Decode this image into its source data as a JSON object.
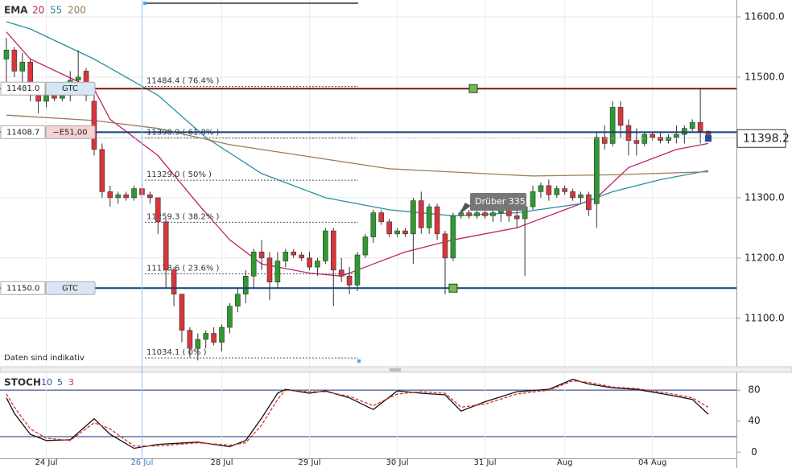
{
  "chart_data": [
    {
      "type": "candlestick",
      "title": "EMA",
      "categories": [
        null,
        null,
        null,
        null,
        null,
        "24 Jul",
        null,
        null,
        null,
        null,
        null,
        null,
        null,
        null,
        null,
        null,
        null,
        "26 Jul",
        null,
        null,
        null,
        null,
        null,
        null,
        null,
        null,
        null,
        "28 Jul",
        null,
        null,
        null,
        null,
        null,
        null,
        null,
        null,
        null,
        null,
        "29 Jul",
        null,
        null,
        null,
        null,
        null,
        null,
        null,
        null,
        null,
        null,
        "30 Jul",
        null,
        null,
        null,
        null,
        null,
        null,
        null,
        null,
        null,
        null,
        "31 Jul",
        null,
        null,
        null,
        null,
        null,
        null,
        null,
        null,
        null,
        "Aug",
        null,
        null,
        null,
        null,
        null,
        null,
        null,
        null,
        null,
        null,
        "04 Aug",
        null,
        null,
        null,
        null,
        null,
        null,
        null
      ],
      "crosshair": 17,
      "open": [
        11530,
        11545,
        11510,
        11525,
        11470,
        11460,
        11480,
        11465,
        11470,
        11495,
        11510,
        11460,
        11380,
        11310,
        11300,
        11305,
        11300,
        11315,
        11305,
        11300,
        11260,
        11180,
        11140,
        11080,
        11050,
        11065,
        11075,
        11060,
        11085,
        11120,
        11140,
        11170,
        11210,
        11200,
        11160,
        11195,
        11210,
        11205,
        11200,
        11185,
        11195,
        11245,
        11180,
        11170,
        11155,
        11205,
        11235,
        11275,
        11260,
        11240,
        11245,
        11240,
        11295,
        11250,
        11285,
        11240,
        11200,
        11270,
        11275,
        11270,
        11275,
        11270,
        11275,
        11280,
        11270,
        11265,
        11285,
        11310,
        11320,
        11305,
        11315,
        11310,
        11300,
        11305,
        11290,
        11400,
        11390,
        11450,
        11420,
        11395,
        11390,
        11405,
        11400,
        11395,
        11400,
        11405,
        11415,
        11425,
        11410
      ],
      "high": [
        11565,
        11550,
        11540,
        11530,
        11490,
        11490,
        11490,
        11480,
        11510,
        11545,
        11515,
        11470,
        11390,
        11320,
        11310,
        11310,
        11320,
        11325,
        11310,
        11300,
        11265,
        11185,
        11140,
        11085,
        11075,
        11080,
        11085,
        11090,
        11125,
        11150,
        11180,
        11215,
        11230,
        11210,
        11210,
        11215,
        11215,
        11210,
        11210,
        11200,
        11250,
        11250,
        11200,
        11185,
        11210,
        11240,
        11280,
        11280,
        11265,
        11250,
        11250,
        11300,
        11310,
        11290,
        11290,
        11245,
        11275,
        11280,
        11280,
        11280,
        11285,
        11280,
        11285,
        11290,
        11280,
        11290,
        11320,
        11325,
        11330,
        11320,
        11320,
        11315,
        11310,
        11310,
        11410,
        11420,
        11460,
        11460,
        11430,
        11415,
        11410,
        11410,
        11410,
        11405,
        11420,
        11420,
        11430,
        11480,
        11412
      ],
      "low": [
        11490,
        11500,
        11470,
        11460,
        11440,
        11450,
        11460,
        11460,
        11460,
        11480,
        11460,
        11370,
        11300,
        11285,
        11290,
        11295,
        11295,
        11300,
        11290,
        11240,
        11150,
        11120,
        11060,
        11035,
        11030,
        11050,
        11055,
        11045,
        11075,
        11110,
        11125,
        11150,
        11180,
        11130,
        11150,
        11185,
        11200,
        11195,
        11180,
        11170,
        11190,
        11120,
        11160,
        11140,
        11145,
        11200,
        11225,
        11255,
        11235,
        11235,
        11235,
        11190,
        11240,
        11240,
        11230,
        11140,
        11195,
        11265,
        11265,
        11265,
        11265,
        11260,
        11260,
        11260,
        11250,
        11170,
        11280,
        11300,
        11295,
        11300,
        11305,
        11295,
        11290,
        11270,
        11250,
        11380,
        11385,
        11400,
        11370,
        11370,
        11385,
        11395,
        11390,
        11390,
        11390,
        11390,
        11410,
        11390,
        11395
      ],
      "close": [
        11545,
        11510,
        11525,
        11470,
        11460,
        11480,
        11465,
        11470,
        11495,
        11500,
        11470,
        11380,
        11310,
        11300,
        11305,
        11300,
        11315,
        11305,
        11300,
        11260,
        11180,
        11140,
        11080,
        11050,
        11065,
        11075,
        11060,
        11085,
        11120,
        11140,
        11170,
        11210,
        11200,
        11160,
        11195,
        11210,
        11205,
        11200,
        11185,
        11195,
        11245,
        11180,
        11170,
        11155,
        11205,
        11235,
        11275,
        11260,
        11240,
        11245,
        11240,
        11295,
        11250,
        11285,
        11240,
        11200,
        11270,
        11275,
        11270,
        11275,
        11270,
        11275,
        11280,
        11270,
        11265,
        11285,
        11310,
        11320,
        11305,
        11315,
        11310,
        11300,
        11305,
        11280,
        11400,
        11390,
        11450,
        11420,
        11395,
        11390,
        11405,
        11400,
        11395,
        11400,
        11405,
        11415,
        11425,
        11410,
        11398.2
      ],
      "up_color": "#2f9a2f",
      "down_color": "#d8353d",
      "ylim": [
        11021,
        11628
      ],
      "yticks": [
        {
          "value": 11100,
          "label": "11100.0"
        },
        {
          "value": 11200,
          "label": "11200.0"
        },
        {
          "value": 11300,
          "label": "11300.0"
        },
        {
          "value": 11400,
          "label": "11400.0"
        },
        {
          "value": 11500,
          "label": "11500.0"
        },
        {
          "value": 11600,
          "label": "11600.0"
        }
      ],
      "grid": true,
      "overlays": [
        {
          "name": "20",
          "color": "#c0226a",
          "x": [
            0,
            3,
            11,
            13,
            19,
            24,
            28,
            32,
            38,
            42,
            46,
            50,
            56,
            64,
            70,
            74,
            78,
            84,
            88
          ],
          "values": [
            11575,
            11530,
            11480,
            11430,
            11370,
            11290,
            11230,
            11190,
            11175,
            11170,
            11190,
            11210,
            11230,
            11250,
            11280,
            11300,
            11350,
            11380,
            11390
          ]
        },
        {
          "name": "55",
          "color": "#2a8fa0",
          "x": [
            0,
            3,
            11,
            19,
            25,
            32,
            40,
            48,
            56,
            64,
            72,
            76,
            82,
            88
          ],
          "values": [
            11592,
            11580,
            11530,
            11470,
            11400,
            11340,
            11300,
            11280,
            11270,
            11275,
            11290,
            11310,
            11330,
            11345
          ]
        },
        {
          "name": "200",
          "color": "#9a7a55",
          "x": [
            0,
            11,
            19,
            28,
            38,
            48,
            66,
            76,
            88
          ],
          "values": [
            11437,
            11428,
            11415,
            11388,
            11368,
            11348,
            11336,
            11338,
            11343
          ]
        }
      ],
      "fib_levels": [
        {
          "value": 11484.4,
          "label": "11484.4 ( 76.4% )"
        },
        {
          "value": 11398.9,
          "label": "11398.9 ( 61.8% )"
        },
        {
          "value": 11329.0,
          "label": "11329.0 ( 50% )"
        },
        {
          "value": 11259.3,
          "label": "11259.3 ( 38.2% )"
        },
        {
          "value": 11173.6,
          "label": "11173.6 ( 23.6% )"
        },
        {
          "value": 11034.1,
          "label": "11034.1 ( 0% )"
        }
      ],
      "orders": [
        {
          "price": {
            "value": 11481.0,
            "label": "11481.0"
          },
          "tag": "GTC",
          "color": "#7d1414",
          "tag_color": "#d6e6f4"
        },
        {
          "price": {
            "value": 11408.7,
            "label": "11408.7"
          },
          "tag": "−E51,00",
          "color": "#0f3f7a",
          "tag_color": "#f6d2d2"
        },
        {
          "price": {
            "value": 11150.0,
            "label": "11150.0"
          },
          "tag": "GTC",
          "color": "#0f3f7a",
          "tag_color": "#d6e6f4"
        }
      ],
      "last_price": {
        "value": 11398.2,
        "label": "11398.2"
      },
      "annotation": "Drüber 335",
      "note": "Daten sind indikativ"
    },
    {
      "type": "line",
      "title": "STOCH",
      "parameters": [
        10,
        5,
        3
      ],
      "ylim": [
        -8,
        103
      ],
      "yticks": [
        0,
        40,
        80
      ],
      "levels": [
        20,
        80
      ],
      "series": [
        {
          "name": "K",
          "color": "#111111",
          "x": [
            0,
            1,
            3,
            5,
            8,
            11,
            13,
            16,
            19,
            24,
            28,
            30,
            32,
            34,
            35,
            38,
            40,
            43,
            46,
            49,
            52,
            55,
            57,
            60,
            64,
            68,
            71,
            73,
            76,
            79,
            83,
            86,
            88
          ],
          "values": [
            70,
            50,
            23,
            15,
            16,
            43,
            23,
            5,
            10,
            13,
            7,
            15,
            44,
            76,
            81,
            76,
            79,
            70,
            55,
            79,
            76,
            74,
            53,
            65,
            78,
            81,
            94,
            88,
            83,
            81,
            74,
            68,
            49
          ]
        },
        {
          "name": "D",
          "color": "#e03030",
          "x": [
            0,
            1,
            3,
            5,
            8,
            11,
            13,
            16,
            19,
            24,
            28,
            30,
            32,
            34,
            35,
            38,
            40,
            43,
            46,
            49,
            52,
            55,
            57,
            60,
            64,
            68,
            71,
            73,
            76,
            79,
            83,
            86,
            88
          ],
          "values": [
            75,
            58,
            30,
            18,
            15,
            38,
            30,
            8,
            8,
            12,
            9,
            12,
            35,
            68,
            80,
            78,
            78,
            72,
            60,
            75,
            78,
            76,
            58,
            62,
            75,
            80,
            92,
            90,
            84,
            82,
            76,
            70,
            58
          ]
        }
      ]
    }
  ]
}
